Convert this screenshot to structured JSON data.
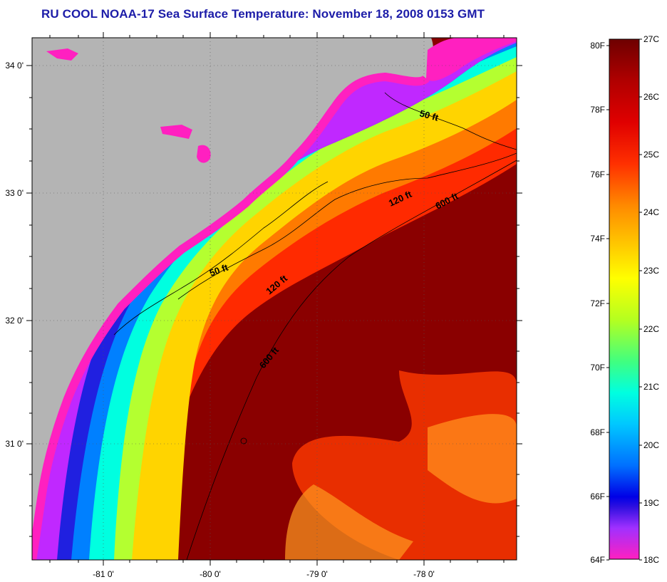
{
  "title": "RU COOL  NOAA-17  Sea Surface Temperature:  November 18, 2008 0153 GMT",
  "map": {
    "lat_ticks": [
      "34 0'",
      "33 0'",
      "32 0'",
      "31 0'"
    ],
    "lon_ticks": [
      "-81 0'",
      "-80 0'",
      "-79 0'",
      "-78 0'"
    ],
    "land_color": "#b4b4b4",
    "contour_labels": {
      "fifty_a": "50 ft",
      "fifty_b": "50 ft",
      "onetwenty_a": "120 ft",
      "onetwenty_b": "120 ft",
      "sixhundred_a": "600 ft",
      "sixhundred_b": "600 ft"
    }
  },
  "colorbar": {
    "fahrenheit": [
      "80F",
      "78F",
      "76F",
      "74F",
      "72F",
      "70F",
      "68F",
      "66F",
      "64F"
    ],
    "celsius": [
      "27C",
      "26C",
      "25C",
      "24C",
      "23C",
      "22C",
      "21C",
      "20C",
      "19C",
      "18C"
    ],
    "colors": [
      "#7a0000",
      "#c40000",
      "#ff2a00",
      "#ff7a00",
      "#ffd400",
      "#f5ff00",
      "#7aff3a",
      "#00ffd0",
      "#00b4ff",
      "#0050ff",
      "#0000e0",
      "#9020ff",
      "#ff20c8"
    ]
  }
}
